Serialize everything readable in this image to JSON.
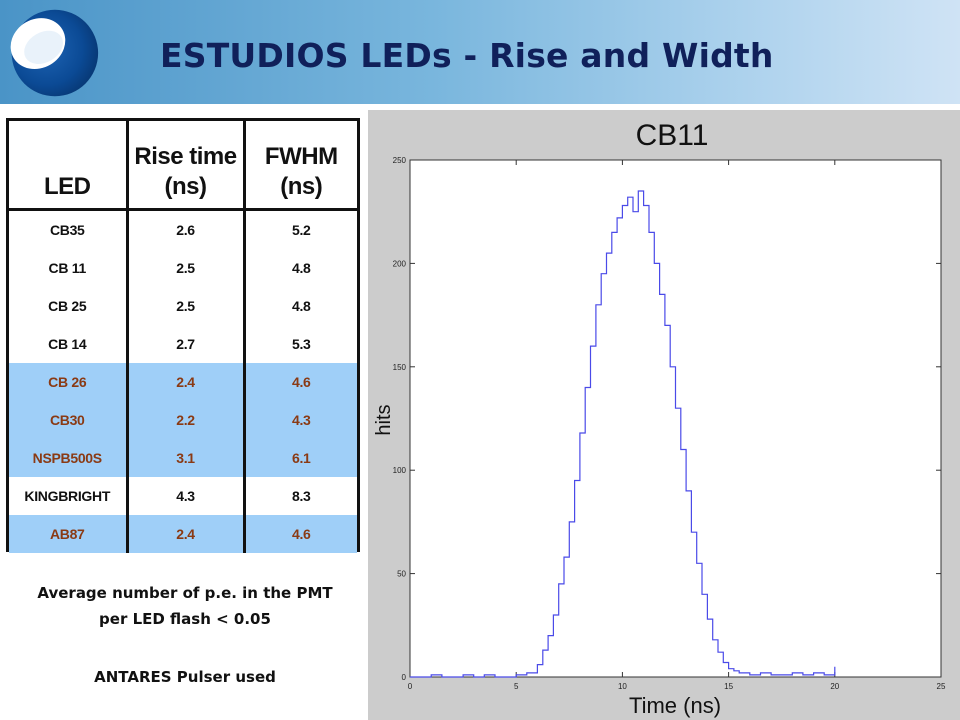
{
  "title": "ESTUDIOS LEDs -  Rise and Width",
  "table": {
    "headers": {
      "led": "LED",
      "rise_line1": "Rise time",
      "rise_line2": "(ns)",
      "fwhm": "FWHM (ns)"
    },
    "rows": [
      {
        "led": "CB35",
        "rise": "2.6",
        "fwhm": "5.2",
        "highlighted": false
      },
      {
        "led": "CB 11",
        "rise": "2.5",
        "fwhm": "4.8",
        "highlighted": false
      },
      {
        "led": "CB 25",
        "rise": "2.5",
        "fwhm": "4.8",
        "highlighted": false
      },
      {
        "led": "CB 14",
        "rise": "2.7",
        "fwhm": "5.3",
        "highlighted": false
      },
      {
        "led": "CB 26",
        "rise": "2.4",
        "fwhm": "4.6",
        "highlighted": true
      },
      {
        "led": "CB30",
        "rise": "2.2",
        "fwhm": "4.3",
        "highlighted": true
      },
      {
        "led": "NSPB500S",
        "rise": "3.1",
        "fwhm": "6.1",
        "highlighted": true
      },
      {
        "led": "KINGBRIGHT",
        "rise": "4.3",
        "fwhm": "8.3",
        "highlighted": false
      },
      {
        "led": "AB87",
        "rise": "2.4",
        "fwhm": "4.6",
        "highlighted": true
      }
    ]
  },
  "notes": {
    "line1": "Average number of p.e. in the PMT",
    "line2": "per LED flash < 0.05",
    "line3": "ANTARES Pulser used"
  },
  "colors": {
    "header_gradient_start": "#4a94c7",
    "header_gradient_end": "#cfe3f5",
    "title": "#10205a",
    "highlight_row": "#9fcff8",
    "highlight_text": "#8a3a14",
    "histogram_line": "#4a4ae8",
    "plot_panel": "#cccccc"
  },
  "chart_data": {
    "type": "line",
    "title": "CB11",
    "xlabel": "Time (ns)",
    "ylabel": "hits",
    "xlim": [
      0,
      25
    ],
    "ylim": [
      0,
      250
    ],
    "xticks": [
      0,
      5,
      10,
      15,
      20,
      25
    ],
    "yticks": [
      0,
      50,
      100,
      150,
      200,
      250
    ],
    "grid": false,
    "series": [
      {
        "style": "step",
        "x": [
          0.0,
          0.5,
          1.0,
          1.5,
          2.0,
          2.5,
          3.0,
          3.5,
          4.0,
          4.5,
          5.0,
          5.5,
          6.0,
          6.25,
          6.5,
          6.75,
          7.0,
          7.25,
          7.5,
          7.75,
          8.0,
          8.25,
          8.5,
          8.75,
          9.0,
          9.25,
          9.5,
          9.75,
          10.0,
          10.25,
          10.5,
          10.75,
          11.0,
          11.25,
          11.5,
          11.75,
          12.0,
          12.25,
          12.5,
          12.75,
          13.0,
          13.25,
          13.5,
          13.75,
          14.0,
          14.25,
          14.5,
          14.75,
          15.0,
          15.25,
          15.5,
          16.0,
          16.5,
          17.0,
          17.5,
          18.0,
          18.5,
          19.0,
          19.5,
          20.0
        ],
        "y": [
          0,
          0,
          1,
          0,
          0,
          1,
          0,
          1,
          0,
          0,
          1,
          2,
          6,
          13,
          20,
          30,
          45,
          58,
          75,
          95,
          118,
          140,
          160,
          180,
          195,
          205,
          215,
          222,
          228,
          232,
          225,
          235,
          228,
          215,
          200,
          185,
          170,
          150,
          130,
          110,
          90,
          70,
          55,
          40,
          28,
          18,
          12,
          7,
          4,
          3,
          2,
          1,
          2,
          1,
          1,
          2,
          1,
          2,
          1,
          5
        ]
      }
    ]
  }
}
